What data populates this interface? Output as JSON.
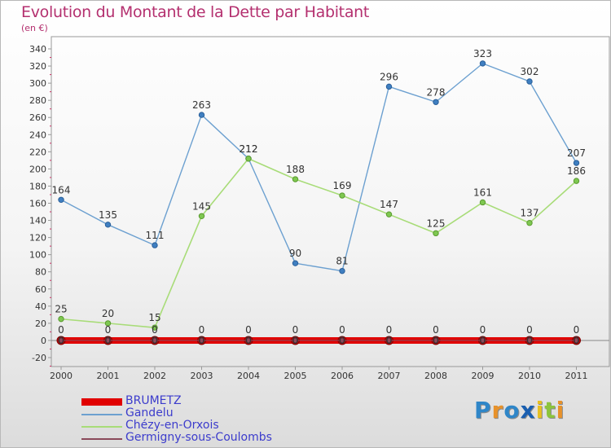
{
  "title": "Evolution du Montant de la Dette par Habitant",
  "subtitle": "(en €)",
  "chart_data": {
    "type": "line",
    "title": "Evolution du Montant de la Dette par Habitant",
    "ylabel": "(en €)",
    "x": [
      "2000",
      "2001",
      "2002",
      "2003",
      "2004",
      "2005",
      "2006",
      "2007",
      "2008",
      "2009",
      "2010",
      "2011"
    ],
    "ylim": [
      -20,
      340
    ],
    "yticks": [
      -20,
      0,
      20,
      40,
      60,
      80,
      100,
      120,
      140,
      160,
      180,
      200,
      220,
      240,
      260,
      280,
      300,
      320,
      340
    ],
    "grid": false,
    "legend_position": "bottom-left",
    "series": [
      {
        "name": "BRUMETZ",
        "color": "#e00000",
        "values": [
          0,
          0,
          0,
          0,
          0,
          0,
          0,
          0,
          0,
          0,
          0,
          0
        ]
      },
      {
        "name": "Gandelu",
        "color": "#6ca0d0",
        "marker": "#3f7fc1",
        "values": [
          164,
          135,
          111,
          263,
          212,
          90,
          81,
          296,
          278,
          323,
          302,
          207
        ]
      },
      {
        "name": "Chézy-en-Orxois",
        "color": "#a8dc78",
        "marker": "#7ec850",
        "values": [
          25,
          20,
          15,
          145,
          212,
          188,
          169,
          147,
          125,
          161,
          137,
          186
        ]
      },
      {
        "name": "Germigny-sous-Coulombs",
        "color": "#8a4a5a",
        "values": [
          0,
          0,
          0,
          0,
          0,
          0,
          0,
          0,
          0,
          0,
          0,
          0
        ]
      }
    ]
  },
  "logo": {
    "letters": [
      "P",
      "r",
      "o",
      "x",
      "i",
      "t",
      "i"
    ],
    "colors": [
      "#2f86c8",
      "#e8922a",
      "#2f86c8",
      "#1a5fb0",
      "#e8c020",
      "#8cc43c",
      "#e8922a"
    ]
  }
}
